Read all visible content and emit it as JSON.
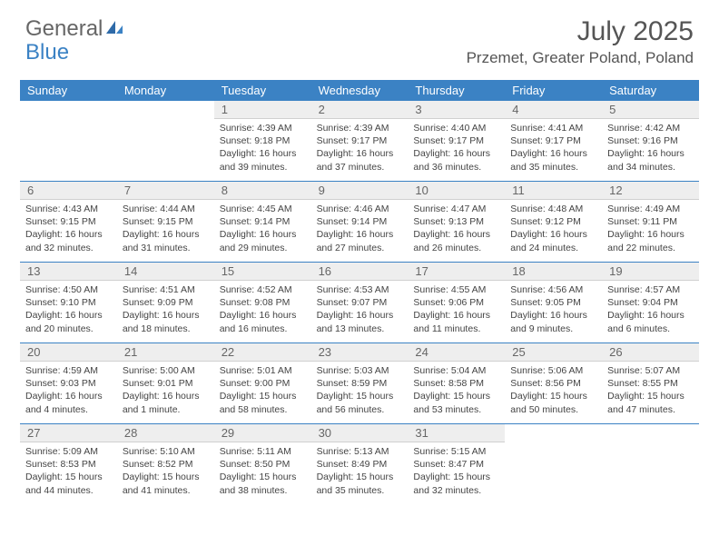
{
  "logo": {
    "text1": "General",
    "text2": "Blue"
  },
  "title": "July 2025",
  "location": "Przemet, Greater Poland, Poland",
  "colors": {
    "header_bg": "#3b82c4",
    "daynum_bg": "#eeeeee",
    "divider": "#3b82c4",
    "text": "#444444"
  },
  "day_names": [
    "Sunday",
    "Monday",
    "Tuesday",
    "Wednesday",
    "Thursday",
    "Friday",
    "Saturday"
  ],
  "weeks": [
    [
      null,
      null,
      {
        "n": "1",
        "sunrise": "4:39 AM",
        "sunset": "9:18 PM",
        "daylight": "16 hours and 39 minutes."
      },
      {
        "n": "2",
        "sunrise": "4:39 AM",
        "sunset": "9:17 PM",
        "daylight": "16 hours and 37 minutes."
      },
      {
        "n": "3",
        "sunrise": "4:40 AM",
        "sunset": "9:17 PM",
        "daylight": "16 hours and 36 minutes."
      },
      {
        "n": "4",
        "sunrise": "4:41 AM",
        "sunset": "9:17 PM",
        "daylight": "16 hours and 35 minutes."
      },
      {
        "n": "5",
        "sunrise": "4:42 AM",
        "sunset": "9:16 PM",
        "daylight": "16 hours and 34 minutes."
      }
    ],
    [
      {
        "n": "6",
        "sunrise": "4:43 AM",
        "sunset": "9:15 PM",
        "daylight": "16 hours and 32 minutes."
      },
      {
        "n": "7",
        "sunrise": "4:44 AM",
        "sunset": "9:15 PM",
        "daylight": "16 hours and 31 minutes."
      },
      {
        "n": "8",
        "sunrise": "4:45 AM",
        "sunset": "9:14 PM",
        "daylight": "16 hours and 29 minutes."
      },
      {
        "n": "9",
        "sunrise": "4:46 AM",
        "sunset": "9:14 PM",
        "daylight": "16 hours and 27 minutes."
      },
      {
        "n": "10",
        "sunrise": "4:47 AM",
        "sunset": "9:13 PM",
        "daylight": "16 hours and 26 minutes."
      },
      {
        "n": "11",
        "sunrise": "4:48 AM",
        "sunset": "9:12 PM",
        "daylight": "16 hours and 24 minutes."
      },
      {
        "n": "12",
        "sunrise": "4:49 AM",
        "sunset": "9:11 PM",
        "daylight": "16 hours and 22 minutes."
      }
    ],
    [
      {
        "n": "13",
        "sunrise": "4:50 AM",
        "sunset": "9:10 PM",
        "daylight": "16 hours and 20 minutes."
      },
      {
        "n": "14",
        "sunrise": "4:51 AM",
        "sunset": "9:09 PM",
        "daylight": "16 hours and 18 minutes."
      },
      {
        "n": "15",
        "sunrise": "4:52 AM",
        "sunset": "9:08 PM",
        "daylight": "16 hours and 16 minutes."
      },
      {
        "n": "16",
        "sunrise": "4:53 AM",
        "sunset": "9:07 PM",
        "daylight": "16 hours and 13 minutes."
      },
      {
        "n": "17",
        "sunrise": "4:55 AM",
        "sunset": "9:06 PM",
        "daylight": "16 hours and 11 minutes."
      },
      {
        "n": "18",
        "sunrise": "4:56 AM",
        "sunset": "9:05 PM",
        "daylight": "16 hours and 9 minutes."
      },
      {
        "n": "19",
        "sunrise": "4:57 AM",
        "sunset": "9:04 PM",
        "daylight": "16 hours and 6 minutes."
      }
    ],
    [
      {
        "n": "20",
        "sunrise": "4:59 AM",
        "sunset": "9:03 PM",
        "daylight": "16 hours and 4 minutes."
      },
      {
        "n": "21",
        "sunrise": "5:00 AM",
        "sunset": "9:01 PM",
        "daylight": "16 hours and 1 minute."
      },
      {
        "n": "22",
        "sunrise": "5:01 AM",
        "sunset": "9:00 PM",
        "daylight": "15 hours and 58 minutes."
      },
      {
        "n": "23",
        "sunrise": "5:03 AM",
        "sunset": "8:59 PM",
        "daylight": "15 hours and 56 minutes."
      },
      {
        "n": "24",
        "sunrise": "5:04 AM",
        "sunset": "8:58 PM",
        "daylight": "15 hours and 53 minutes."
      },
      {
        "n": "25",
        "sunrise": "5:06 AM",
        "sunset": "8:56 PM",
        "daylight": "15 hours and 50 minutes."
      },
      {
        "n": "26",
        "sunrise": "5:07 AM",
        "sunset": "8:55 PM",
        "daylight": "15 hours and 47 minutes."
      }
    ],
    [
      {
        "n": "27",
        "sunrise": "5:09 AM",
        "sunset": "8:53 PM",
        "daylight": "15 hours and 44 minutes."
      },
      {
        "n": "28",
        "sunrise": "5:10 AM",
        "sunset": "8:52 PM",
        "daylight": "15 hours and 41 minutes."
      },
      {
        "n": "29",
        "sunrise": "5:11 AM",
        "sunset": "8:50 PM",
        "daylight": "15 hours and 38 minutes."
      },
      {
        "n": "30",
        "sunrise": "5:13 AM",
        "sunset": "8:49 PM",
        "daylight": "15 hours and 35 minutes."
      },
      {
        "n": "31",
        "sunrise": "5:15 AM",
        "sunset": "8:47 PM",
        "daylight": "15 hours and 32 minutes."
      },
      null,
      null
    ]
  ]
}
